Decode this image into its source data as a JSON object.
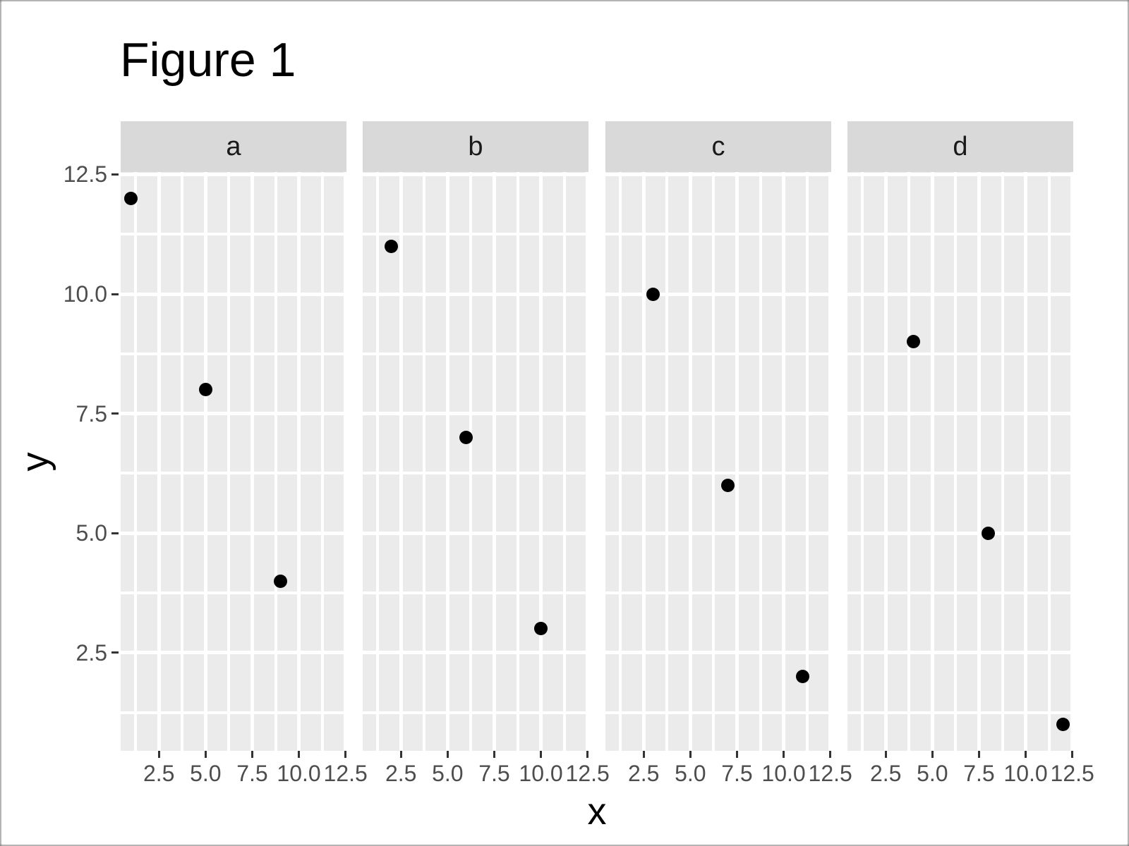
{
  "figure": {
    "title": "Figure 1",
    "x_axis_label": "x",
    "y_axis_label": "y"
  },
  "chart_data": {
    "type": "scatter",
    "title": "Figure 1",
    "xlabel": "x",
    "ylabel": "y",
    "faceted": true,
    "facets": [
      {
        "label": "a",
        "points": [
          {
            "x": 1,
            "y": 12
          },
          {
            "x": 5,
            "y": 8
          },
          {
            "x": 9,
            "y": 4
          }
        ]
      },
      {
        "label": "b",
        "points": [
          {
            "x": 2,
            "y": 11
          },
          {
            "x": 6,
            "y": 7
          },
          {
            "x": 10,
            "y": 3
          }
        ]
      },
      {
        "label": "c",
        "points": [
          {
            "x": 3,
            "y": 10
          },
          {
            "x": 7,
            "y": 6
          },
          {
            "x": 11,
            "y": 2
          }
        ]
      },
      {
        "label": "d",
        "points": [
          {
            "x": 4,
            "y": 9
          },
          {
            "x": 8,
            "y": 5
          },
          {
            "x": 12,
            "y": 1
          }
        ]
      }
    ],
    "x_ticks": [
      {
        "v": 2.5,
        "label": "2.5"
      },
      {
        "v": 5.0,
        "label": "5.0"
      },
      {
        "v": 7.5,
        "label": "7.5"
      },
      {
        "v": 10.0,
        "label": "10.0"
      },
      {
        "v": 12.5,
        "label": "12.5"
      }
    ],
    "y_ticks": [
      {
        "v": 12.5,
        "label": "12.5"
      },
      {
        "v": 10.0,
        "label": "10.0"
      },
      {
        "v": 7.5,
        "label": "7.5"
      },
      {
        "v": 5.0,
        "label": "5.0"
      },
      {
        "v": 2.5,
        "label": "2.5"
      }
    ],
    "minor_breaks": [
      1.25,
      3.75,
      6.25,
      8.75,
      11.25
    ],
    "x_range": [
      0.45,
      12.55
    ],
    "y_range": [
      0.45,
      12.55
    ],
    "grid": true,
    "legend": "none",
    "style": {
      "panel_bg": "#EBEBEB",
      "strip_bg": "#D9D9D9",
      "strip_text": "#1A1A1A",
      "grid_color": "#FFFFFF",
      "point_color": "#000000",
      "tick_label_color": "#4D4D4D",
      "tick_mark_color": "#333333"
    }
  }
}
